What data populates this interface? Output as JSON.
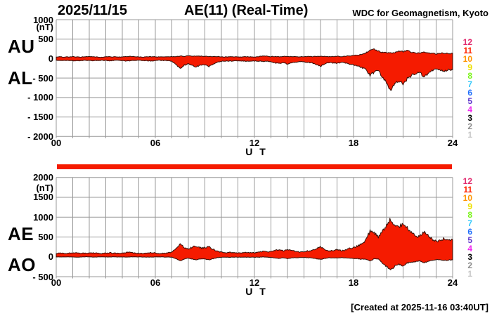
{
  "header": {
    "date": "2025/11/15",
    "title": "AE(11) (Real-Time)",
    "source": "WDC for Geomagnetism, Kyoto"
  },
  "footer": {
    "created": "[Created at 2025-11-16 03:40UT]"
  },
  "colors": {
    "fill": "#f51b00",
    "outline": "#331008",
    "grid": "#999999",
    "availability_bar": "#f51b00",
    "text": "#000000"
  },
  "station_scale": {
    "labels": [
      "12",
      "11",
      "10",
      "9",
      "8",
      "7",
      "6",
      "5",
      "4",
      "3",
      "2",
      "1"
    ],
    "colors": [
      "#e12a6e",
      "#ff2400",
      "#ff9500",
      "#ede000",
      "#7df41e",
      "#35c8fa",
      "#2472fc",
      "#6038cc",
      "#f02af0",
      "#000000",
      "#8c8c8c",
      "#c8c8c8"
    ]
  },
  "chart_data": [
    {
      "type": "area",
      "panel": "top",
      "title": "AU and AL auroral electrojet indices, 2025/11/15",
      "unit": "(nT)",
      "index_labels": [
        "AU",
        "AL"
      ],
      "ylim": [
        -2000,
        1000
      ],
      "ytick_values": [
        1000,
        500,
        0,
        -500,
        -1000,
        -1500,
        -2000
      ],
      "ytick_labels": [
        "1000",
        "500",
        "0",
        "- 500",
        "- 1000",
        "- 1500",
        "- 2000"
      ],
      "xlabel": "U T",
      "xlim": [
        0,
        24
      ],
      "xtick_values": [
        0,
        6,
        12,
        18,
        24
      ],
      "xtick_labels": [
        "00",
        "06",
        "12",
        "18",
        "24"
      ],
      "grid": "on",
      "x_hours": [
        0,
        0.25,
        0.5,
        0.75,
        1,
        1.25,
        1.5,
        1.75,
        2,
        2.25,
        2.5,
        2.75,
        3,
        3.25,
        3.5,
        3.75,
        4,
        4.25,
        4.5,
        4.75,
        5,
        5.25,
        5.5,
        5.75,
        6,
        6.25,
        6.5,
        6.75,
        7,
        7.25,
        7.5,
        7.75,
        8,
        8.25,
        8.5,
        8.75,
        9,
        9.25,
        9.5,
        9.75,
        10,
        10.25,
        10.5,
        10.75,
        11,
        11.25,
        11.5,
        11.75,
        12,
        12.25,
        12.5,
        12.75,
        13,
        13.25,
        13.5,
        13.75,
        14,
        14.25,
        14.5,
        14.75,
        15,
        15.25,
        15.5,
        15.75,
        16,
        16.25,
        16.5,
        16.75,
        17,
        17.25,
        17.5,
        17.75,
        18,
        18.25,
        18.5,
        18.75,
        19,
        19.25,
        19.5,
        19.75,
        20,
        20.25,
        20.5,
        20.75,
        21,
        21.25,
        21.5,
        21.75,
        22,
        22.25,
        22.5,
        22.75,
        23,
        23.25,
        23.5,
        23.75,
        24
      ],
      "series": [
        {
          "name": "AU",
          "values": [
            40,
            46,
            38,
            44,
            50,
            43,
            40,
            47,
            52,
            46,
            41,
            38,
            45,
            51,
            44,
            40,
            43,
            49,
            55,
            48,
            44,
            40,
            45,
            50,
            46,
            42,
            40,
            45,
            50,
            55,
            65,
            60,
            70,
            65,
            60,
            65,
            60,
            55,
            50,
            50,
            45,
            42,
            46,
            44,
            40,
            44,
            48,
            44,
            42,
            46,
            70,
            60,
            50,
            55,
            50,
            55,
            50,
            55,
            50,
            45,
            50,
            55,
            50,
            55,
            60,
            55,
            50,
            55,
            60,
            55,
            60,
            70,
            80,
            90,
            110,
            150,
            220,
            250,
            190,
            160,
            150,
            140,
            150,
            190,
            180,
            200,
            170,
            150,
            145,
            160,
            150,
            135,
            125,
            135,
            145,
            125,
            135
          ]
        },
        {
          "name": "AL",
          "values": [
            -45,
            -50,
            -42,
            -48,
            -55,
            -60,
            -50,
            -45,
            -52,
            -58,
            -48,
            -42,
            -50,
            -55,
            -48,
            -45,
            -50,
            -60,
            -55,
            -48,
            -45,
            -50,
            -55,
            -60,
            -50,
            -45,
            -48,
            -52,
            -70,
            -140,
            -260,
            -170,
            -130,
            -180,
            -210,
            -160,
            -170,
            -200,
            -140,
            -90,
            -70,
            -60,
            -65,
            -60,
            -55,
            -60,
            -65,
            -60,
            -62,
            -68,
            -72,
            -70,
            -80,
            -110,
            -130,
            -100,
            -140,
            -110,
            -90,
            -80,
            -85,
            -95,
            -110,
            -150,
            -190,
            -130,
            -100,
            -110,
            -120,
            -100,
            -110,
            -140,
            -160,
            -180,
            -230,
            -270,
            -430,
            -350,
            -300,
            -480,
            -640,
            -810,
            -620,
            -560,
            -640,
            -520,
            -430,
            -390,
            -350,
            -470,
            -390,
            -310,
            -265,
            -285,
            -320,
            -285,
            -290
          ]
        }
      ]
    },
    {
      "type": "area",
      "panel": "bottom",
      "title": "AE and AO auroral electrojet indices, 2025/11/15",
      "unit": "(nT)",
      "index_labels": [
        "AE",
        "AO"
      ],
      "ylim": [
        -500,
        2000
      ],
      "ytick_values": [
        2000,
        1500,
        1000,
        500,
        0,
        -500
      ],
      "ytick_labels": [
        "2000",
        "1500",
        "1000",
        "500",
        "0",
        "- 500"
      ],
      "xlabel": "U T",
      "xlim": [
        0,
        24
      ],
      "xtick_values": [
        0,
        6,
        12,
        18,
        24
      ],
      "xtick_labels": [
        "00",
        "06",
        "12",
        "18",
        "24"
      ],
      "grid": "on",
      "x_hours": [
        0,
        0.25,
        0.5,
        0.75,
        1,
        1.25,
        1.5,
        1.75,
        2,
        2.25,
        2.5,
        2.75,
        3,
        3.25,
        3.5,
        3.75,
        4,
        4.25,
        4.5,
        4.75,
        5,
        5.25,
        5.5,
        5.75,
        6,
        6.25,
        6.5,
        6.75,
        7,
        7.25,
        7.5,
        7.75,
        8,
        8.25,
        8.5,
        8.75,
        9,
        9.25,
        9.5,
        9.75,
        10,
        10.25,
        10.5,
        10.75,
        11,
        11.25,
        11.5,
        11.75,
        12,
        12.25,
        12.5,
        12.75,
        13,
        13.25,
        13.5,
        13.75,
        14,
        14.25,
        14.5,
        14.75,
        15,
        15.25,
        15.5,
        15.75,
        16,
        16.25,
        16.5,
        16.75,
        17,
        17.25,
        17.5,
        17.75,
        18,
        18.25,
        18.5,
        18.75,
        19,
        19.25,
        19.5,
        19.75,
        20,
        20.25,
        20.5,
        20.75,
        21,
        21.25,
        21.5,
        21.75,
        22,
        22.25,
        22.5,
        22.75,
        23,
        23.25,
        23.5,
        23.75,
        24
      ],
      "series": [
        {
          "name": "AE",
          "values": [
            85,
            96,
            80,
            92,
            105,
            103,
            90,
            92,
            104,
            104,
            89,
            80,
            95,
            106,
            92,
            85,
            93,
            109,
            110,
            96,
            89,
            90,
            100,
            110,
            96,
            87,
            88,
            97,
            120,
            195,
            325,
            230,
            200,
            245,
            270,
            225,
            230,
            255,
            190,
            140,
            115,
            102,
            111,
            104,
            95,
            104,
            113,
            104,
            104,
            114,
            142,
            130,
            130,
            165,
            180,
            155,
            190,
            165,
            140,
            125,
            135,
            150,
            160,
            205,
            250,
            185,
            150,
            165,
            180,
            155,
            170,
            210,
            240,
            270,
            340,
            420,
            650,
            600,
            490,
            640,
            790,
            950,
            770,
            750,
            820,
            720,
            600,
            540,
            495,
            630,
            540,
            445,
            390,
            420,
            465,
            410,
            425
          ]
        },
        {
          "name": "AO",
          "values": [
            -3,
            -2,
            -2,
            -2,
            -3,
            -9,
            -5,
            1,
            0,
            -6,
            -4,
            -2,
            -3,
            -2,
            -2,
            -3,
            -4,
            -6,
            0,
            0,
            -1,
            -5,
            -5,
            -5,
            -2,
            -2,
            -4,
            -4,
            -10,
            -43,
            -98,
            -55,
            -30,
            -58,
            -75,
            -48,
            -55,
            -73,
            -45,
            -20,
            -13,
            -9,
            -10,
            -8,
            -8,
            -8,
            -9,
            -8,
            -10,
            -11,
            -1,
            -5,
            -15,
            -28,
            -40,
            -23,
            -45,
            -28,
            -20,
            -18,
            -18,
            -20,
            -30,
            -48,
            -65,
            -38,
            -25,
            -28,
            -30,
            -23,
            -25,
            -35,
            -40,
            -45,
            -60,
            -60,
            -105,
            -50,
            -55,
            -160,
            -245,
            -335,
            -235,
            -185,
            -230,
            -160,
            -130,
            -120,
            -103,
            -155,
            -120,
            -88,
            -70,
            -75,
            -88,
            -80,
            -78
          ]
        }
      ]
    }
  ]
}
